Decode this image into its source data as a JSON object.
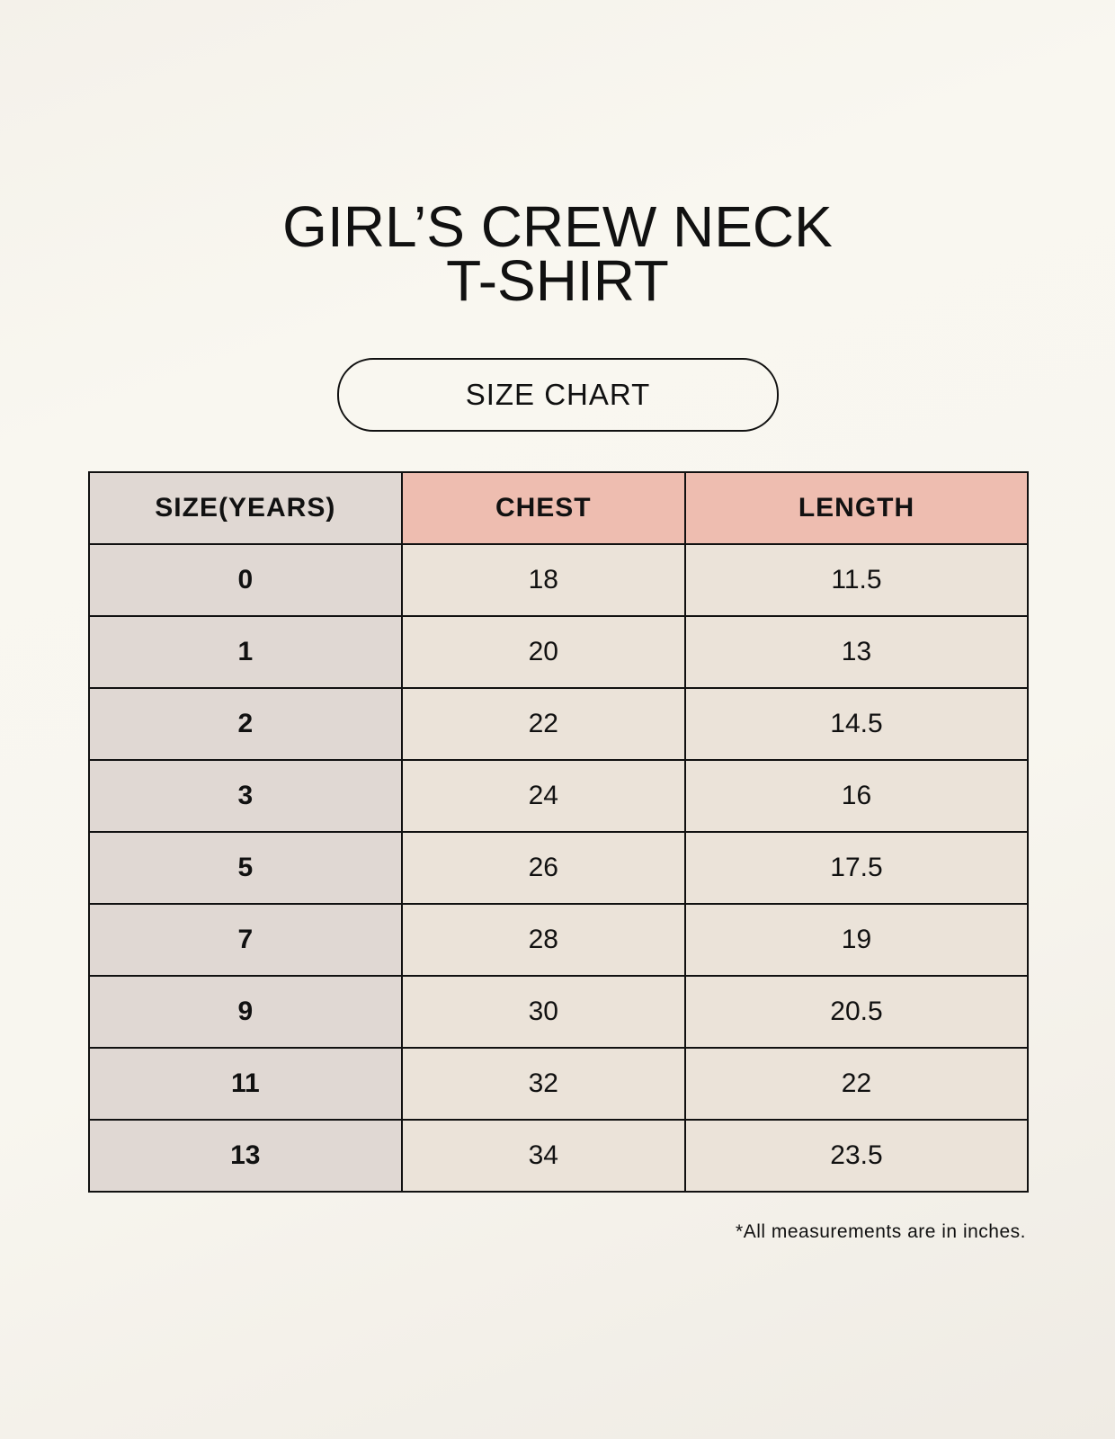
{
  "title": {
    "line1": "GIRL’S CREW NECK",
    "line2": "T-SHIRT"
  },
  "subtitle": "SIZE CHART",
  "table": {
    "headers": [
      "SIZE(YEARS)",
      "CHEST",
      "LENGTH"
    ],
    "rows": [
      [
        "0",
        "18",
        "11.5"
      ],
      [
        "1",
        "20",
        "13"
      ],
      [
        "2",
        "22",
        "14.5"
      ],
      [
        "3",
        "24",
        "16"
      ],
      [
        "5",
        "26",
        "17.5"
      ],
      [
        "7",
        "28",
        "19"
      ],
      [
        "9",
        "30",
        "20.5"
      ],
      [
        "11",
        "32",
        "22"
      ],
      [
        "13",
        "34",
        "23.5"
      ]
    ]
  },
  "footnote": "*All measurements are in inches.",
  "colors": {
    "header_size": "#e0d8d3",
    "header_measure": "#eebdb0",
    "cell_size": "#e0d8d3",
    "cell_measure": "#ebe3d9"
  }
}
